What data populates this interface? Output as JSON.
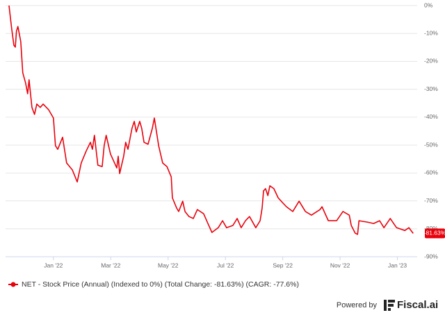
{
  "chart_data": {
    "type": "line",
    "x": [
      -1.55,
      -1.46,
      -1.38,
      -1.33,
      -1.29,
      -1.24,
      -1.14,
      -1.07,
      -0.97,
      -0.9,
      -0.85,
      -0.75,
      -0.66,
      -0.58,
      -0.46,
      -0.36,
      -0.17,
      0.0,
      0.07,
      0.15,
      0.32,
      0.46,
      0.66,
      0.83,
      0.97,
      1.14,
      1.29,
      1.36,
      1.43,
      1.55,
      1.7,
      1.77,
      1.84,
      1.99,
      2.21,
      2.26,
      2.31,
      2.45,
      2.52,
      2.6,
      2.74,
      2.82,
      2.89,
      3.01,
      3.08,
      3.16,
      3.3,
      3.45,
      3.52,
      3.67,
      3.81,
      3.96,
      4.11,
      4.15,
      4.3,
      4.37,
      4.51,
      4.59,
      4.73,
      4.88,
      5.02,
      5.24,
      5.39,
      5.53,
      5.75,
      5.9,
      6.04,
      6.26,
      6.41,
      6.55,
      6.7,
      6.84,
      7.06,
      7.21,
      7.28,
      7.33,
      7.4,
      7.48,
      7.55,
      7.69,
      7.84,
      7.99,
      8.13,
      8.35,
      8.57,
      8.79,
      9.0,
      9.3,
      9.37,
      9.59,
      9.73,
      9.88,
      10.1,
      10.32,
      10.39,
      10.53,
      10.61,
      10.66,
      10.95,
      11.17,
      11.38,
      11.53,
      11.75,
      11.97,
      12.26,
      12.4,
      12.55
    ],
    "series": [
      {
        "name": "NET - Stock Price (Annual) (Indexed to 0%) (Total Change: -81.63%) (CAGR: -77.6%)",
        "color": "#e8000b",
        "values": [
          0,
          -8.0,
          -14.2,
          -14.9,
          -9.2,
          -7.5,
          -12.9,
          -24.1,
          -27.8,
          -31.6,
          -26.6,
          -36.5,
          -39.0,
          -35.3,
          -36.5,
          -35.3,
          -37.3,
          -40.3,
          -50.2,
          -51.5,
          -47.2,
          -56.4,
          -58.9,
          -63.2,
          -56.4,
          -52.2,
          -49.0,
          -51.5,
          -46.5,
          -57.2,
          -57.7,
          -50.2,
          -46.5,
          -53.2,
          -58.2,
          -54.0,
          -60.2,
          -54.0,
          -49.0,
          -51.5,
          -44.0,
          -41.5,
          -45.3,
          -41.5,
          -44.0,
          -49.0,
          -49.7,
          -44.0,
          -40.3,
          -50.2,
          -56.4,
          -57.7,
          -61.4,
          -68.9,
          -72.6,
          -73.8,
          -70.1,
          -73.8,
          -75.6,
          -76.3,
          -73.1,
          -74.6,
          -78.1,
          -81.3,
          -79.6,
          -77.1,
          -79.6,
          -78.8,
          -76.3,
          -79.6,
          -77.1,
          -75.6,
          -79.6,
          -77.1,
          -72.6,
          -66.4,
          -65.6,
          -68.1,
          -64.6,
          -65.6,
          -68.9,
          -70.6,
          -72.1,
          -73.8,
          -70.1,
          -73.8,
          -75.1,
          -73.1,
          -72.1,
          -77.1,
          -77.1,
          -77.1,
          -73.8,
          -75.1,
          -78.8,
          -81.6,
          -82.0,
          -77.1,
          -77.6,
          -78.1,
          -77.1,
          -79.6,
          -76.3,
          -79.6,
          -80.6,
          -79.6,
          -81.63
        ],
        "value_labels": [
          null,
          null,
          null,
          null,
          null,
          null,
          null,
          null,
          null,
          null,
          null,
          null,
          null,
          null,
          null,
          null,
          null,
          null,
          null,
          null,
          null,
          null,
          null,
          null,
          null,
          null,
          null,
          null,
          null,
          null,
          null,
          null,
          null,
          null,
          null,
          null,
          null,
          null,
          null,
          null,
          null,
          null,
          null,
          null,
          null,
          null,
          null,
          null,
          null,
          null,
          null,
          null,
          null,
          null,
          null,
          null,
          null,
          null,
          null,
          null,
          null,
          null,
          null,
          null,
          null,
          null,
          null,
          null,
          null,
          null,
          null,
          null,
          null,
          null,
          null,
          null,
          null,
          null,
          null,
          null,
          null,
          null,
          null,
          null,
          null,
          null,
          null,
          null,
          null,
          null,
          null,
          null,
          null,
          null,
          null,
          null,
          null,
          null,
          null,
          null,
          null,
          null,
          null,
          null,
          null,
          null,
          "-81.63%"
        ]
      }
    ],
    "xlim": [
      -1.67,
      12.69
    ],
    "xticks": [
      {
        "value": 0,
        "label": "Jan '22"
      },
      {
        "value": 2,
        "label": "Mar '22"
      },
      {
        "value": 4,
        "label": "May '22"
      },
      {
        "value": 6,
        "label": "Jul '22"
      },
      {
        "value": 8,
        "label": "Sep '22"
      },
      {
        "value": 10,
        "label": "Nov '22"
      },
      {
        "value": 12,
        "label": "Jan '23"
      }
    ],
    "ylim": [
      -90,
      0
    ],
    "yticks": [
      {
        "value": 0,
        "label": "0%"
      },
      {
        "value": -10,
        "label": "-10%"
      },
      {
        "value": -20,
        "label": "-20%"
      },
      {
        "value": -30,
        "label": "-30%"
      },
      {
        "value": -40,
        "label": "-40%"
      },
      {
        "value": -50,
        "label": "-50%"
      },
      {
        "value": -60,
        "label": "-60%"
      },
      {
        "value": -70,
        "label": "-70%"
      },
      {
        "value": -80,
        "label": "-80%"
      },
      {
        "value": -90,
        "label": "-90%"
      }
    ],
    "grid": true,
    "legend": "bottom-left",
    "footer": {
      "powered_by": "Powered by",
      "brand": "Fiscal.ai"
    }
  }
}
